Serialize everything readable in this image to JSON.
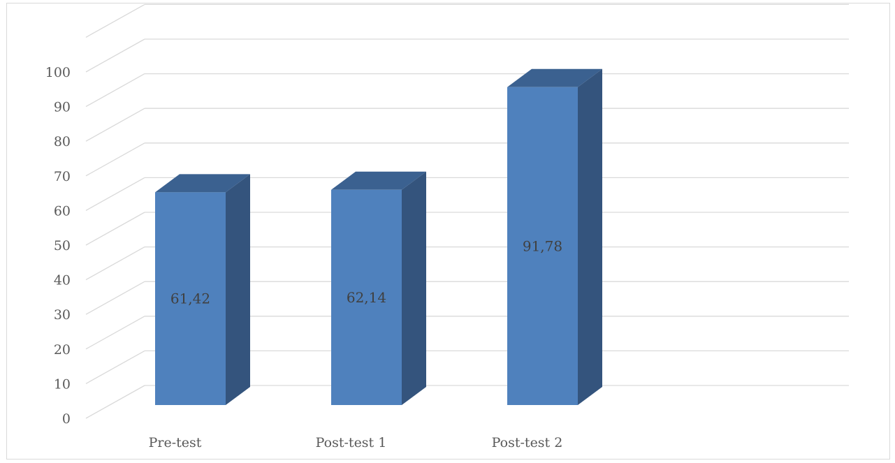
{
  "chart_data": {
    "type": "bar",
    "categories": [
      "Pre-test",
      "Post-test 1",
      "Post-test 2"
    ],
    "values": [
      61.42,
      62.14,
      91.78
    ],
    "data_labels": [
      "61,42",
      "62,14",
      "91,78"
    ],
    "y_tick_labels": [
      "0",
      "10",
      "20",
      "30",
      "40",
      "50",
      "60",
      "70",
      "80",
      "90",
      "100"
    ],
    "ylim": [
      0,
      110
    ],
    "grid": true,
    "style": "3d-column",
    "colors": {
      "bar_front": "#4f81bd",
      "bar_side": "#34547d",
      "bar_top": "#3b6190",
      "grid": "#d9d9d9",
      "text": "#595959",
      "data_label": "#404040"
    }
  }
}
